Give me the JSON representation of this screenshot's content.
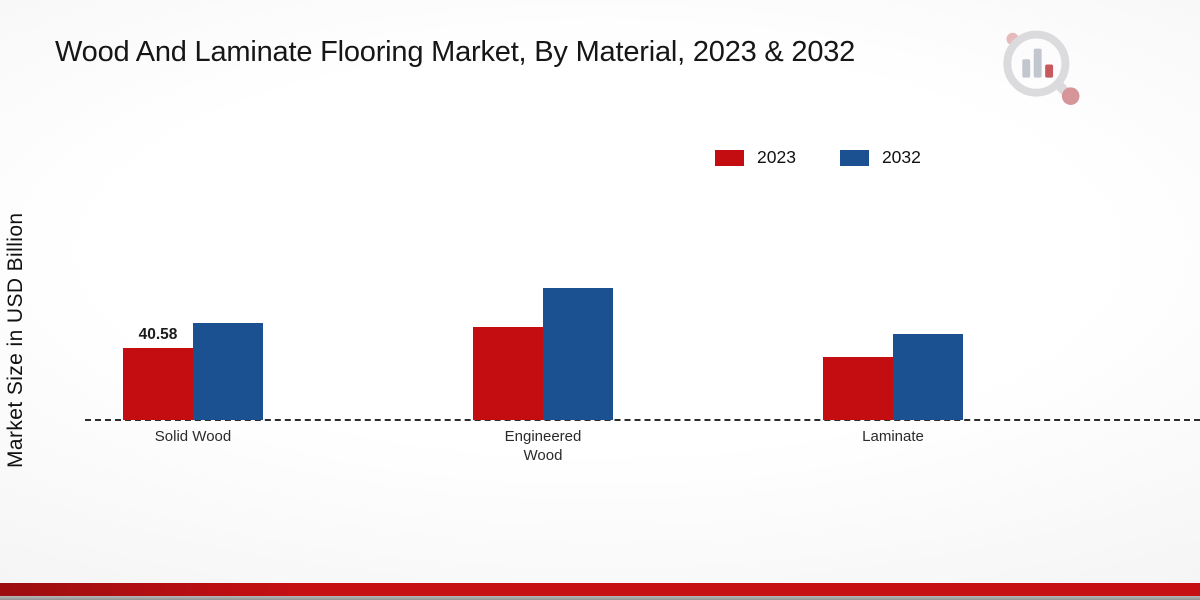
{
  "header": {
    "title": "Wood And Laminate Flooring Market, By Material, 2023 & 2032"
  },
  "axis": {
    "y_label": "Market Size in USD Billion"
  },
  "legend": [
    {
      "label": "2023",
      "color": "#c40d10"
    },
    {
      "label": "2032",
      "color": "#1b5191"
    }
  ],
  "chart_data": {
    "type": "bar",
    "title": "Wood And Laminate Flooring Market, By Material, 2023 & 2032",
    "ylabel": "Market Size in USD Billion",
    "xlabel": "",
    "categories": [
      "Solid Wood",
      "Engineered Wood",
      "Laminate"
    ],
    "series": [
      {
        "name": "2023",
        "color": "#c40d10",
        "values": [
          40.58,
          52.0,
          35.0
        ],
        "value_labels": [
          "40.58",
          "",
          ""
        ]
      },
      {
        "name": "2032",
        "color": "#1b5191",
        "values": [
          54.5,
          74.0,
          48.0
        ],
        "value_labels": [
          "",
          "",
          ""
        ]
      }
    ],
    "ylim": [
      0,
      112
    ],
    "grid": false,
    "legend_position": "top-right",
    "x_axis_line": "dashed"
  }
}
